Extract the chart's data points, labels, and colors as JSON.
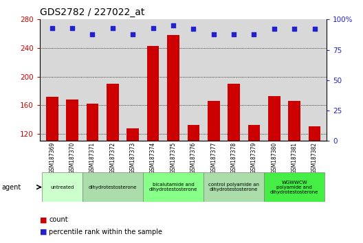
{
  "title": "GDS2782 / 227022_at",
  "samples": [
    "GSM187369",
    "GSM187370",
    "GSM187371",
    "GSM187372",
    "GSM187373",
    "GSM187374",
    "GSM187375",
    "GSM187376",
    "GSM187377",
    "GSM187378",
    "GSM187379",
    "GSM187380",
    "GSM187381",
    "GSM187382"
  ],
  "counts": [
    172,
    168,
    162,
    190,
    128,
    243,
    258,
    132,
    166,
    190,
    132,
    173,
    166,
    130
  ],
  "percentile": [
    93,
    93,
    88,
    93,
    88,
    93,
    95,
    92,
    88,
    88,
    88,
    92,
    92,
    92
  ],
  "bar_color": "#cc0000",
  "dot_color": "#2222cc",
  "ylim_left": [
    110,
    280
  ],
  "ylim_right": [
    0,
    100
  ],
  "yticks_left": [
    120,
    160,
    200,
    240,
    280
  ],
  "yticks_right": [
    0,
    25,
    50,
    75,
    100
  ],
  "groups": [
    {
      "label": "untreated",
      "start": 0,
      "end": 2,
      "color": "#ccffcc"
    },
    {
      "label": "dihydrotestosterone",
      "start": 2,
      "end": 5,
      "color": "#aaddaa"
    },
    {
      "label": "bicalutamide and\ndihydrotestosterone",
      "start": 5,
      "end": 8,
      "color": "#88ff88"
    },
    {
      "label": "control polyamide an\ndihydrotestosterone",
      "start": 8,
      "end": 11,
      "color": "#aaddaa"
    },
    {
      "label": "WGWWCW\npolyamide and\ndihydrotestosterone",
      "start": 11,
      "end": 14,
      "color": "#44ee44"
    }
  ],
  "bg_color": "#d8d8d8",
  "title_fontsize": 10,
  "axis_color_left": "#cc0000",
  "axis_color_right": "#2222cc"
}
